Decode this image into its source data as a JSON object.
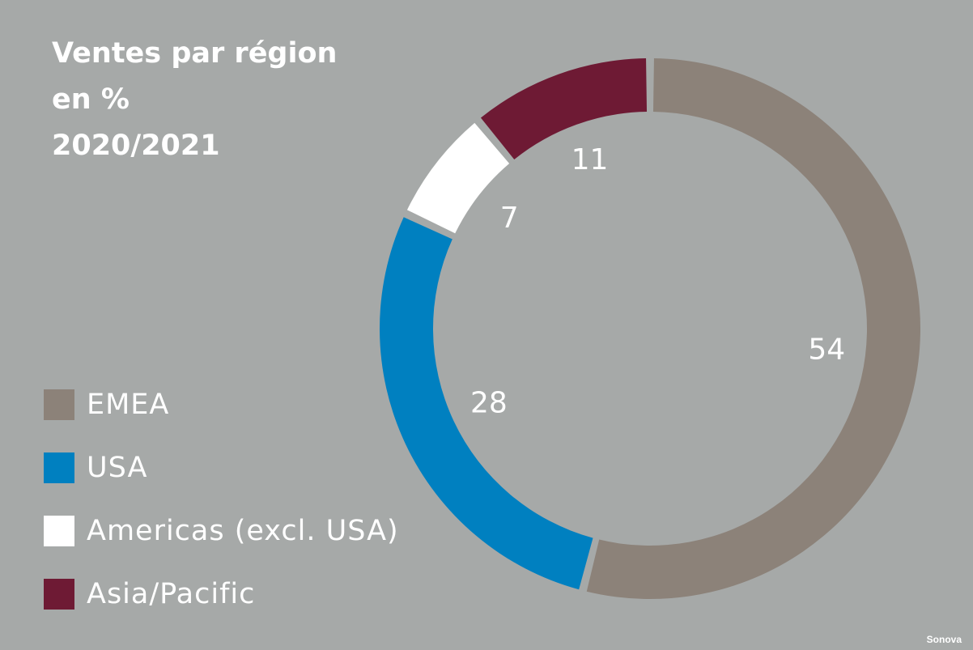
{
  "chart_data": {
    "type": "pie",
    "title_lines": [
      "Ventes par région",
      "en %",
      "2020/2021"
    ],
    "categories": [
      "EMEA",
      "USA",
      "Americas (excl. USA)",
      "Asia/Pacific"
    ],
    "values": [
      54,
      28,
      7,
      11
    ],
    "value_labels": [
      "54",
      "28",
      "7",
      "11"
    ],
    "colors": [
      "#8c8279",
      "#0080c0",
      "#ffffff",
      "#6e1a34"
    ],
    "donut": true,
    "legend_position": "bottom-left"
  },
  "colors": {
    "background": "#a6a9a8",
    "text": "#ffffff"
  },
  "source": "Sonova"
}
